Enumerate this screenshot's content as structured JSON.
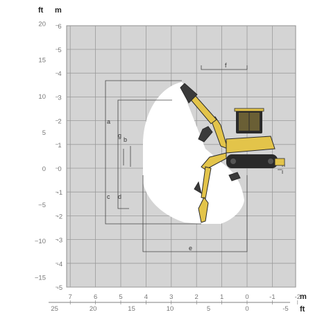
{
  "axes": {
    "left_unit_ft": "ft",
    "left_unit_m": "m",
    "bottom_unit_m": "m",
    "bottom_unit_ft": "ft",
    "ft_left_ticks": [
      "20",
      "15",
      "10",
      "5",
      "0",
      "−5",
      "−10",
      "−15"
    ],
    "m_left_ticks": [
      "6",
      "5",
      "4",
      "3",
      "2",
      "1",
      "0",
      "-1",
      "-2",
      "-3",
      "-4",
      "-5"
    ],
    "m_bottom_ticks": [
      "7",
      "6",
      "5",
      "4",
      "3",
      "2",
      "1",
      "0",
      "-1",
      "-2"
    ],
    "ft_bottom_ticks": [
      "25",
      "20",
      "15",
      "10",
      "5",
      "0",
      "-5"
    ]
  },
  "dimensions": {
    "labels": [
      "a",
      "b",
      "c",
      "d",
      "e",
      "f",
      "g",
      "h",
      "i"
    ]
  },
  "colors": {
    "grid_bg": "#d4d4d4",
    "grid_line": "#9a9a9a",
    "envelope": "#ffffff",
    "machine_yellow": "#e3c44a",
    "machine_dark": "#2a2a2a"
  }
}
